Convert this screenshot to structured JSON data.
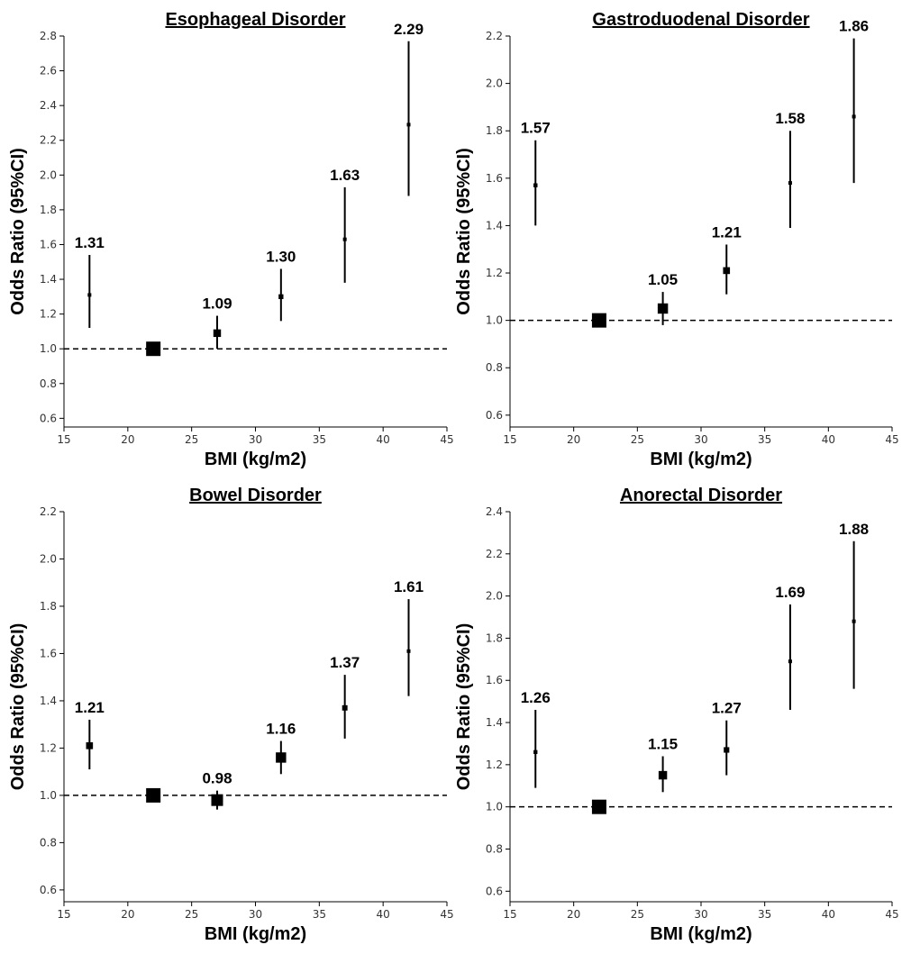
{
  "colors": {
    "mark": "#000000",
    "axis": "#000000",
    "reference_line": "#000000",
    "background": "#ffffff"
  },
  "chart_data": [
    {
      "type": "scatter",
      "title": "Esophageal Disorder",
      "xlabel": "BMI (kg/m2)",
      "ylabel": "Odds Ratio (95%CI)",
      "xlim": [
        15,
        45
      ],
      "ylim": [
        0.55,
        2.8
      ],
      "xticks": [
        "15",
        "20",
        "25",
        "30",
        "35",
        "40",
        "45"
      ],
      "yticks": [
        "0.6",
        "0.8",
        "1.0",
        "1.2",
        "1.4",
        "1.6",
        "1.8",
        "2.0",
        "2.2",
        "2.4",
        "2.6",
        "2.8"
      ],
      "reference_line": 1.0,
      "points": [
        {
          "x": 17,
          "y": 1.31,
          "ci": [
            1.12,
            1.54
          ],
          "label": "1.31"
        },
        {
          "x": 22,
          "y": 1.0,
          "ci": [
            1.0,
            1.0
          ],
          "label": "",
          "reference": true
        },
        {
          "x": 27,
          "y": 1.09,
          "ci": [
            1.0,
            1.19
          ],
          "label": "1.09"
        },
        {
          "x": 32,
          "y": 1.3,
          "ci": [
            1.16,
            1.46
          ],
          "label": "1.30"
        },
        {
          "x": 37,
          "y": 1.63,
          "ci": [
            1.38,
            1.93
          ],
          "label": "1.63"
        },
        {
          "x": 42,
          "y": 2.29,
          "ci": [
            1.88,
            2.77
          ],
          "label": "2.29"
        }
      ]
    },
    {
      "type": "scatter",
      "title": "Gastroduodenal Disorder",
      "xlabel": "BMI (kg/m2)",
      "ylabel": "Odds Ratio (95%CI)",
      "xlim": [
        15,
        45
      ],
      "ylim": [
        0.55,
        2.2
      ],
      "xticks": [
        "15",
        "20",
        "25",
        "30",
        "35",
        "40",
        "45"
      ],
      "yticks": [
        "0.6",
        "0.8",
        "1.0",
        "1.2",
        "1.4",
        "1.6",
        "1.8",
        "2.0",
        "2.2"
      ],
      "reference_line": 1.0,
      "points": [
        {
          "x": 17,
          "y": 1.57,
          "ci": [
            1.4,
            1.76
          ],
          "label": "1.57"
        },
        {
          "x": 22,
          "y": 1.0,
          "ci": [
            1.0,
            1.0
          ],
          "label": "",
          "reference": true
        },
        {
          "x": 27,
          "y": 1.05,
          "ci": [
            0.98,
            1.12
          ],
          "label": "1.05"
        },
        {
          "x": 32,
          "y": 1.21,
          "ci": [
            1.11,
            1.32
          ],
          "label": "1.21"
        },
        {
          "x": 37,
          "y": 1.58,
          "ci": [
            1.39,
            1.8
          ],
          "label": "1.58"
        },
        {
          "x": 42,
          "y": 1.86,
          "ci": [
            1.58,
            2.19
          ],
          "label": "1.86"
        }
      ]
    },
    {
      "type": "scatter",
      "title": "Bowel Disorder",
      "xlabel": "BMI (kg/m2)",
      "ylabel": "Odds Ratio (95%CI)",
      "xlim": [
        15,
        45
      ],
      "ylim": [
        0.55,
        2.2
      ],
      "xticks": [
        "15",
        "20",
        "25",
        "30",
        "35",
        "40",
        "45"
      ],
      "yticks": [
        "0.6",
        "0.8",
        "1.0",
        "1.2",
        "1.4",
        "1.6",
        "1.8",
        "2.0",
        "2.2"
      ],
      "reference_line": 1.0,
      "points": [
        {
          "x": 17,
          "y": 1.21,
          "ci": [
            1.11,
            1.32
          ],
          "label": "1.21"
        },
        {
          "x": 22,
          "y": 1.0,
          "ci": [
            1.0,
            1.0
          ],
          "label": "",
          "reference": true
        },
        {
          "x": 27,
          "y": 0.98,
          "ci": [
            0.94,
            1.02
          ],
          "label": "0.98"
        },
        {
          "x": 32,
          "y": 1.16,
          "ci": [
            1.09,
            1.23
          ],
          "label": "1.16"
        },
        {
          "x": 37,
          "y": 1.37,
          "ci": [
            1.24,
            1.51
          ],
          "label": "1.37"
        },
        {
          "x": 42,
          "y": 1.61,
          "ci": [
            1.42,
            1.83
          ],
          "label": "1.61"
        }
      ]
    },
    {
      "type": "scatter",
      "title": "Anorectal Disorder",
      "xlabel": "BMI (kg/m2)",
      "ylabel": "Odds Ratio (95%CI)",
      "xlim": [
        15,
        45
      ],
      "ylim": [
        0.55,
        2.4
      ],
      "xticks": [
        "15",
        "20",
        "25",
        "30",
        "35",
        "40",
        "45"
      ],
      "yticks": [
        "0.6",
        "0.8",
        "1.0",
        "1.2",
        "1.4",
        "1.6",
        "1.8",
        "2.0",
        "2.2",
        "2.4"
      ],
      "reference_line": 1.0,
      "points": [
        {
          "x": 17,
          "y": 1.26,
          "ci": [
            1.09,
            1.46
          ],
          "label": "1.26"
        },
        {
          "x": 22,
          "y": 1.0,
          "ci": [
            1.0,
            1.0
          ],
          "label": "",
          "reference": true
        },
        {
          "x": 27,
          "y": 1.15,
          "ci": [
            1.07,
            1.24
          ],
          "label": "1.15"
        },
        {
          "x": 32,
          "y": 1.27,
          "ci": [
            1.15,
            1.41
          ],
          "label": "1.27"
        },
        {
          "x": 37,
          "y": 1.69,
          "ci": [
            1.46,
            1.96
          ],
          "label": "1.69"
        },
        {
          "x": 42,
          "y": 1.88,
          "ci": [
            1.56,
            2.26
          ],
          "label": "1.88"
        }
      ]
    }
  ]
}
